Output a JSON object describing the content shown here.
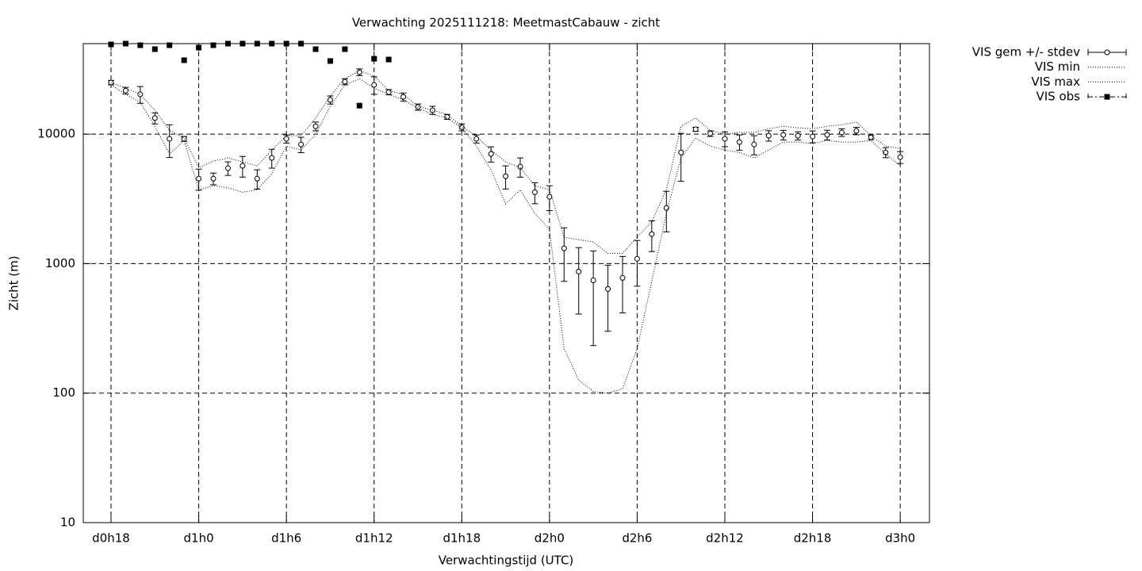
{
  "chart_data": {
    "type": "line",
    "title": "Verwachting 2025111218: MeetmastCabauw - zicht",
    "xlabel": "Verwachtingstijd (UTC)",
    "ylabel": "Zicht (m)",
    "x": [
      18,
      19,
      20,
      21,
      22,
      23,
      24,
      25,
      26,
      27,
      28,
      29,
      30,
      31,
      32,
      33,
      34,
      35,
      36,
      37,
      38,
      39,
      40,
      41,
      42,
      43,
      44,
      45,
      46,
      47,
      48,
      49,
      50,
      51,
      52,
      53,
      54,
      55,
      56,
      57,
      58,
      59,
      60,
      61,
      62,
      63,
      64,
      65,
      66,
      67,
      68,
      69,
      70,
      71,
      72
    ],
    "xlim": [
      16.1,
      74
    ],
    "xticks": [
      {
        "value": 18,
        "label": "d0h18"
      },
      {
        "value": 24,
        "label": "d1h0"
      },
      {
        "value": 30,
        "label": "d1h6"
      },
      {
        "value": 36,
        "label": "d1h12"
      },
      {
        "value": 42,
        "label": "d1h18"
      },
      {
        "value": 48,
        "label": "d2h0"
      },
      {
        "value": 54,
        "label": "d2h6"
      },
      {
        "value": 60,
        "label": "d2h12"
      },
      {
        "value": 66,
        "label": "d2h18"
      },
      {
        "value": 72,
        "label": "d3h0"
      }
    ],
    "ylim": [
      10,
      50000
    ],
    "yticks": [
      10,
      100,
      1000,
      10000
    ],
    "log_y": true,
    "grid": true,
    "legend": "outside-right",
    "series": [
      {
        "name": "VIS gem +/- stdev",
        "style": "errorbars",
        "color": "#000000",
        "values": [
          25000,
          21700,
          20300,
          13300,
          9200,
          9200,
          4530,
          4530,
          5450,
          5690,
          4530,
          6550,
          9200,
          8320,
          11500,
          18400,
          25400,
          30100,
          24000,
          21100,
          19400,
          16200,
          15300,
          13600,
          11300,
          9200,
          7030,
          4730,
          5600,
          3560,
          3280,
          1310,
          868,
          743,
          637,
          776,
          1090,
          1690,
          2690,
          7220,
          10900,
          10100,
          9200,
          8690,
          8320,
          9720,
          9860,
          9720,
          9580,
          9860,
          10300,
          10600,
          9450,
          7220,
          6640
        ],
        "errors": [
          1000,
          1300,
          3000,
          1300,
          2600,
          400,
          840,
          470,
          650,
          1040,
          770,
          1090,
          660,
          1130,
          900,
          1300,
          1400,
          1800,
          3700,
          1000,
          1400,
          900,
          1100,
          600,
          700,
          660,
          950,
          960,
          950,
          660,
          710,
          580,
          460,
          510,
          336,
          360,
          420,
          450,
          930,
          2900,
          400,
          500,
          1200,
          1170,
          1400,
          900,
          840,
          700,
          1000,
          850,
          700,
          700,
          400,
          650,
          700
        ]
      },
      {
        "name": "VIS min",
        "style": "dotted",
        "color": "#000000",
        "values": [
          24000,
          20300,
          17600,
          11500,
          7030,
          8930,
          3720,
          4000,
          3850,
          3560,
          3720,
          4940,
          8090,
          7540,
          10000,
          16400,
          24000,
          26800,
          22600,
          20300,
          18400,
          15900,
          14200,
          13300,
          11200,
          8090,
          5300,
          2890,
          3720,
          2440,
          1840,
          221,
          126,
          103,
          100,
          108,
          221,
          734,
          2440,
          6550,
          9320,
          8090,
          7540,
          7220,
          6550,
          7540,
          8690,
          8690,
          8440,
          8930,
          8690,
          8690,
          8930,
          7030,
          5690
        ]
      },
      {
        "name": "VIS max",
        "style": "dotted",
        "color": "#000000",
        "values": [
          25000,
          22600,
          20300,
          15300,
          10700,
          9320,
          5520,
          6190,
          6550,
          6100,
          5690,
          7540,
          9720,
          9720,
          13300,
          19700,
          26800,
          31000,
          28000,
          21700,
          20300,
          16400,
          15300,
          14200,
          11500,
          9600,
          7540,
          6100,
          5520,
          4000,
          3720,
          1600,
          1530,
          1470,
          1200,
          1200,
          1600,
          2110,
          3720,
          11500,
          13300,
          10700,
          10000,
          10300,
          10300,
          11000,
          11500,
          11200,
          11000,
          11500,
          11800,
          12400,
          9720,
          8090,
          7750
        ]
      },
      {
        "name": "VIS obs",
        "style": "points",
        "color": "#000000",
        "values": [
          49300,
          50000,
          48600,
          45300,
          48600,
          37200,
          46600,
          48600,
          50000,
          50000,
          50000,
          50000,
          50000,
          50000,
          45300,
          36700,
          45300,
          16600,
          38200,
          37700,
          null,
          null,
          null,
          null,
          null,
          null,
          null,
          null,
          null,
          null,
          null,
          null,
          null,
          null,
          null,
          null,
          null,
          null,
          null,
          null,
          null,
          null,
          null,
          null,
          null,
          null,
          null,
          null,
          null,
          null,
          null,
          null,
          null,
          null,
          null
        ]
      }
    ]
  }
}
